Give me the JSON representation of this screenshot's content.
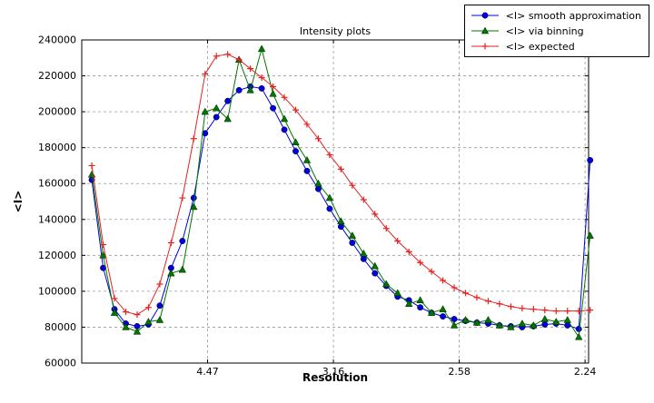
{
  "chart_data": {
    "type": "line",
    "title": "Intensity plots",
    "xlabel": "Resolution",
    "ylabel": "<I>",
    "grid": {
      "on": true,
      "style": "dashed"
    },
    "legend": {
      "location": "upper-right"
    },
    "x_axis": {
      "lim": [
        0.0,
        0.2014
      ],
      "ticks": [
        {
          "value": 0.05,
          "label": "4.47"
        },
        {
          "value": 0.1,
          "label": "3.16"
        },
        {
          "value": 0.15,
          "label": "2.58"
        },
        {
          "value": 0.2,
          "label": "2.24"
        }
      ]
    },
    "y_axis": {
      "lim": [
        60000,
        240000
      ],
      "ticks": [
        60000,
        80000,
        100000,
        120000,
        140000,
        160000,
        180000,
        200000,
        220000,
        240000
      ]
    },
    "x": [
      0.004,
      0.0085,
      0.013,
      0.0175,
      0.022,
      0.0265,
      0.031,
      0.0355,
      0.04,
      0.0445,
      0.049,
      0.0535,
      0.058,
      0.0625,
      0.067,
      0.0715,
      0.076,
      0.0805,
      0.085,
      0.0895,
      0.094,
      0.0985,
      0.103,
      0.1075,
      0.112,
      0.1165,
      0.121,
      0.1255,
      0.13,
      0.1345,
      0.139,
      0.1435,
      0.148,
      0.1525,
      0.157,
      0.1615,
      0.166,
      0.1705,
      0.175,
      0.1795,
      0.184,
      0.1885,
      0.193,
      0.1975,
      0.202
    ],
    "series": [
      {
        "name": "<I> smooth approximation",
        "color": "#0000dd",
        "marker": "circle",
        "values": [
          162000,
          113000,
          90000,
          82000,
          80500,
          81500,
          92000,
          113000,
          128000,
          152000,
          188000,
          197000,
          206000,
          212000,
          214000,
          213000,
          202000,
          190000,
          178000,
          167000,
          157000,
          146000,
          136000,
          127000,
          118000,
          110000,
          103000,
          97000,
          95000,
          91000,
          88000,
          86000,
          84500,
          83500,
          82500,
          82000,
          81000,
          80500,
          80000,
          80500,
          81500,
          82000,
          81000,
          79000,
          173000
        ]
      },
      {
        "name": "<I> via binning",
        "color": "#007700",
        "marker": "triangle",
        "values": [
          165000,
          120000,
          88000,
          80000,
          77500,
          83000,
          84000,
          110000,
          112000,
          147000,
          200000,
          202000,
          196000,
          229000,
          212000,
          235000,
          210000,
          196000,
          183000,
          173000,
          160000,
          152000,
          139000,
          131000,
          121000,
          114000,
          104000,
          99000,
          93000,
          95000,
          88000,
          90000,
          81000,
          84000,
          82500,
          84000,
          81000,
          80000,
          82000,
          81000,
          84500,
          83000,
          84000,
          74500,
          131000
        ]
      },
      {
        "name": "<I> expected",
        "color": "#e62020",
        "marker": "plus",
        "values": [
          170000,
          126000,
          96000,
          88500,
          87000,
          91000,
          104000,
          127000,
          152000,
          185000,
          221000,
          231000,
          232000,
          229000,
          224000,
          219000,
          214000,
          208000,
          201000,
          193000,
          185000,
          176000,
          168000,
          159000,
          151000,
          143000,
          135000,
          128000,
          122000,
          116000,
          111000,
          106000,
          102000,
          99000,
          96500,
          94500,
          93000,
          91500,
          90500,
          90000,
          89500,
          89000,
          89000,
          89000,
          89500
        ]
      }
    ]
  }
}
